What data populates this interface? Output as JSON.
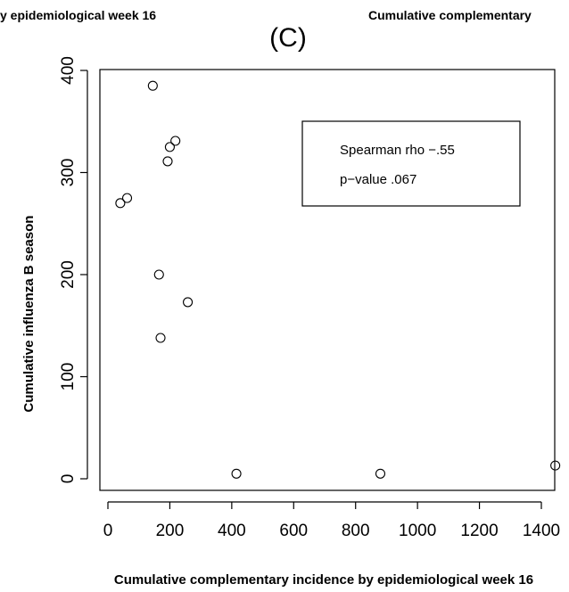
{
  "header": {
    "left_caption": "y epidemiological week 16",
    "right_caption": "Cumulative complementary"
  },
  "chart_data": {
    "type": "scatter",
    "title": "(C)",
    "xlabel": "Cumulative complementary incidence by epidemiological week 16",
    "ylabel": "Cumulative influenza B season",
    "xlim": [
      0,
      1450
    ],
    "ylim": [
      0,
      400
    ],
    "x_ticks": [
      "0",
      "200",
      "400",
      "600",
      "800",
      "1000",
      "1200",
      "1400"
    ],
    "y_ticks": [
      "0",
      "100",
      "200",
      "300",
      "400"
    ],
    "grid": false,
    "points": [
      {
        "x": 40,
        "y": 270
      },
      {
        "x": 62,
        "y": 275
      },
      {
        "x": 145,
        "y": 385
      },
      {
        "x": 165,
        "y": 200
      },
      {
        "x": 170,
        "y": 138
      },
      {
        "x": 193,
        "y": 311
      },
      {
        "x": 200,
        "y": 325
      },
      {
        "x": 218,
        "y": 331
      },
      {
        "x": 258,
        "y": 173
      },
      {
        "x": 415,
        "y": 5
      },
      {
        "x": 880,
        "y": 5
      },
      {
        "x": 1445,
        "y": 13
      }
    ],
    "legend": {
      "lines": [
        "Spearman rho −.55",
        "p−value .067"
      ],
      "placement": "top-right"
    }
  }
}
